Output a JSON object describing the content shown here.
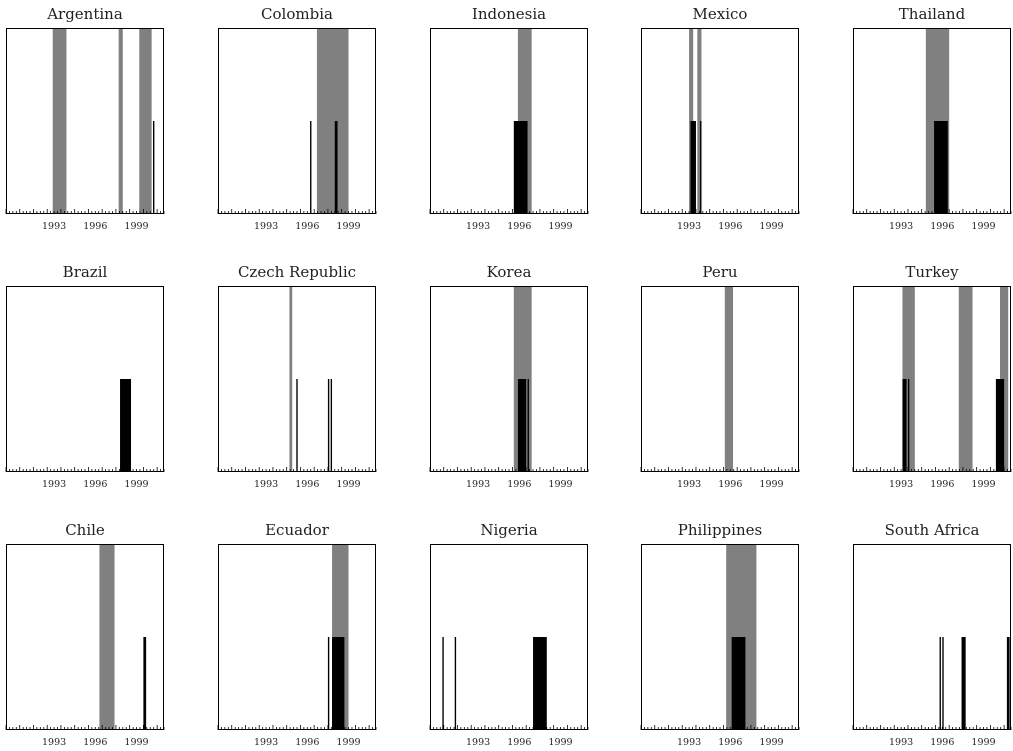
{
  "chart_data": {
    "type": "bar",
    "x_range": [
      1990,
      2001.5
    ],
    "tick_labels": [
      "1993",
      "1996",
      "1999"
    ],
    "colors": {
      "shade": "#808080",
      "bar": "#000000",
      "frame": "#000000"
    },
    "panels": [
      {
        "title": "Argentina",
        "shaded": [
          [
            1993.4,
            1994.4
          ],
          [
            1998.2,
            1998.5
          ],
          [
            1999.7,
            2000.6
          ]
        ],
        "bars": [
          [
            2000.7,
            2000.8,
            0.5
          ]
        ]
      },
      {
        "title": "Colombia",
        "shaded": [
          [
            1997.2,
            1999.5
          ]
        ],
        "bars": [
          [
            1996.7,
            1996.8,
            0.5
          ],
          [
            1998.5,
            1998.7,
            0.5
          ]
        ]
      },
      {
        "title": "Indonesia",
        "shaded": [
          [
            1996.4,
            1997.4
          ]
        ],
        "bars": [
          [
            1996.1,
            1997.1,
            0.5
          ]
        ]
      },
      {
        "title": "Mexico",
        "shaded": [
          [
            1993.5,
            1993.8
          ],
          [
            1994.1,
            1994.4
          ]
        ],
        "bars": [
          [
            1993.6,
            1994.0,
            0.5
          ],
          [
            1994.3,
            1994.4,
            0.5
          ]
        ]
      },
      {
        "title": "Thailand",
        "shaded": [
          [
            1995.3,
            1997.0
          ]
        ],
        "bars": [
          [
            1995.9,
            1996.9,
            0.5
          ]
        ]
      },
      {
        "title": "Brazil",
        "shaded": [],
        "bars": [
          [
            1998.3,
            1999.1,
            0.5
          ]
        ]
      },
      {
        "title": "Czech Republic",
        "shaded": [
          [
            1995.2,
            1995.4
          ]
        ],
        "bars": [
          [
            1995.7,
            1995.8,
            0.5
          ],
          [
            1998.0,
            1998.1,
            0.5
          ],
          [
            1998.2,
            1998.3,
            0.5
          ]
        ]
      },
      {
        "title": "Korea",
        "shaded": [
          [
            1996.1,
            1997.4
          ]
        ],
        "bars": [
          [
            1996.4,
            1997.0,
            0.5
          ],
          [
            1997.1,
            1997.2,
            0.5
          ]
        ]
      },
      {
        "title": "Peru",
        "shaded": [
          [
            1996.1,
            1996.7
          ]
        ],
        "bars": []
      },
      {
        "title": "Turkey",
        "shaded": [
          [
            1993.6,
            1994.5
          ],
          [
            1997.7,
            1998.7
          ],
          [
            2000.7,
            2001.3
          ]
        ],
        "bars": [
          [
            1993.6,
            1993.9,
            0.5
          ],
          [
            1994.0,
            1994.1,
            0.5
          ],
          [
            2000.4,
            2001.0,
            0.5
          ]
        ]
      },
      {
        "title": "Chile",
        "shaded": [
          [
            1996.8,
            1997.9
          ]
        ],
        "bars": [
          [
            2000.0,
            2000.2,
            0.5
          ]
        ]
      },
      {
        "title": "Ecuador",
        "shaded": [
          [
            1998.3,
            1999.5
          ]
        ],
        "bars": [
          [
            1998.0,
            1998.1,
            0.5
          ],
          [
            1998.3,
            1999.2,
            0.5
          ]
        ]
      },
      {
        "title": "Nigeria",
        "shaded": [],
        "bars": [
          [
            1990.9,
            1991.0,
            0.5
          ],
          [
            1991.8,
            1991.9,
            0.5
          ],
          [
            1997.5,
            1998.5,
            0.5
          ]
        ]
      },
      {
        "title": "Philippines",
        "shaded": [
          [
            1996.2,
            1998.4
          ]
        ],
        "bars": [
          [
            1996.6,
            1997.6,
            0.5
          ]
        ]
      },
      {
        "title": "South Africa",
        "shaded": [],
        "bars": [
          [
            1996.3,
            1996.4,
            0.5
          ],
          [
            1996.5,
            1996.6,
            0.5
          ],
          [
            1997.9,
            1998.2,
            0.5
          ],
          [
            2001.2,
            2001.4,
            0.5
          ]
        ]
      }
    ]
  }
}
